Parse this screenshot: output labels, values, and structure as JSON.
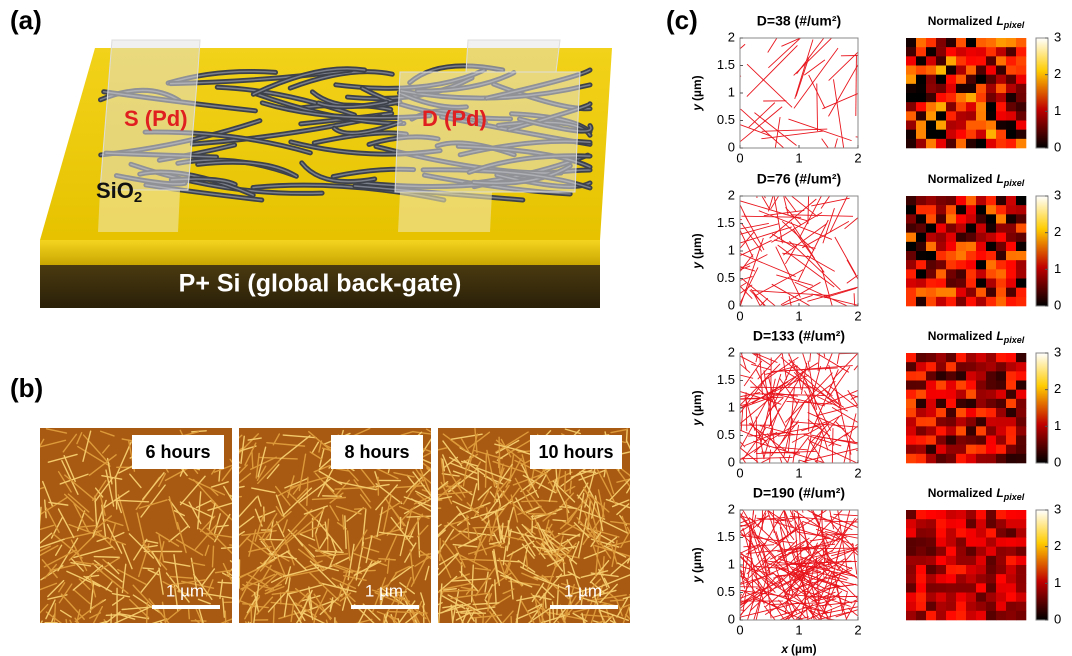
{
  "panel_a": {
    "label": "(a)",
    "source": "S (Pd)",
    "drain": "D (Pd)",
    "oxide": "SiO",
    "oxide_subscript": "2",
    "substrate": "P+ Si (global back-gate)"
  },
  "panel_b": {
    "label": "(b)",
    "images": [
      {
        "time": "6 hours",
        "scale": "1 µm"
      },
      {
        "time": "8 hours",
        "scale": "1 µm"
      },
      {
        "time": "10 hours",
        "scale": "1 µm"
      }
    ]
  },
  "panel_c": {
    "label": "(c)",
    "rows": [
      {
        "density": "D=38 (#/um²)"
      },
      {
        "density": "D=76 (#/um²)"
      },
      {
        "density": "D=133 (#/um²)"
      },
      {
        "density": "D=190 (#/um²)"
      }
    ],
    "heatmap_title": "Normalized",
    "heatmap_symbol": "L",
    "heatmap_subscript": "pixel",
    "y_label_var": "y",
    "y_label_unit": "(µm)",
    "x_label_var": "x",
    "x_label_unit": "(µm)",
    "xlim": [
      0,
      2
    ],
    "ylim": [
      0,
      2
    ],
    "xticks": [
      0,
      1,
      2
    ],
    "yticks": [
      0,
      0.5,
      1,
      1.5,
      2
    ],
    "clim": [
      0,
      3
    ],
    "cticks": [
      0,
      1,
      2,
      3
    ]
  }
}
